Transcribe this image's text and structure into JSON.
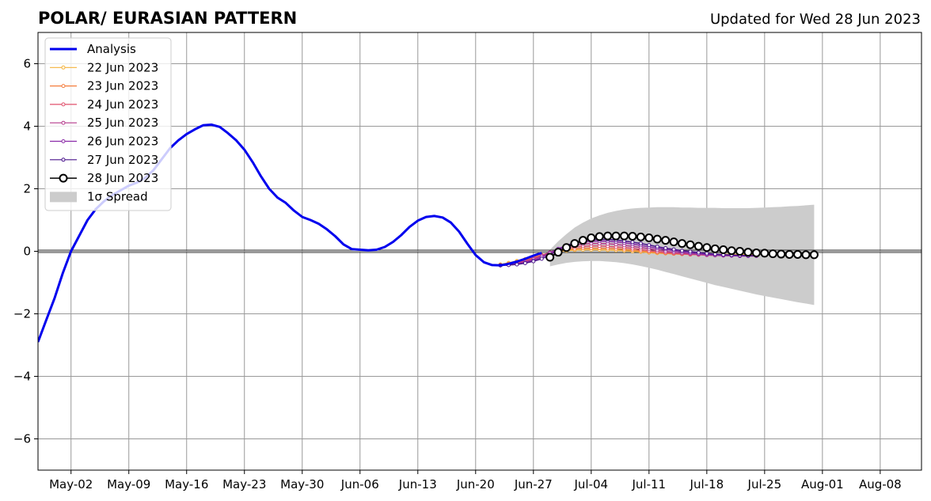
{
  "chart_data": {
    "type": "line",
    "title": "POLAR/ EURASIAN  PATTERN",
    "subtitle": "Updated for Wed 28 Jun 2023",
    "xlabel": "",
    "ylabel": "",
    "x_axis": "date",
    "xlim": [
      "2023-04-28",
      "2023-08-13"
    ],
    "ylim": [
      -7,
      7
    ],
    "x_ticks": [
      {
        "date": "2023-05-02",
        "label": "May-02"
      },
      {
        "date": "2023-05-09",
        "label": "May-09"
      },
      {
        "date": "2023-05-16",
        "label": "May-16"
      },
      {
        "date": "2023-05-23",
        "label": "May-23"
      },
      {
        "date": "2023-05-30",
        "label": "May-30"
      },
      {
        "date": "2023-06-06",
        "label": "Jun-06"
      },
      {
        "date": "2023-06-13",
        "label": "Jun-13"
      },
      {
        "date": "2023-06-20",
        "label": "Jun-20"
      },
      {
        "date": "2023-06-27",
        "label": "Jun-27"
      },
      {
        "date": "2023-07-04",
        "label": "Jul-04"
      },
      {
        "date": "2023-07-11",
        "label": "Jul-11"
      },
      {
        "date": "2023-07-18",
        "label": "Jul-18"
      },
      {
        "date": "2023-07-25",
        "label": "Jul-25"
      },
      {
        "date": "2023-08-01",
        "label": "Aug-01"
      },
      {
        "date": "2023-08-08",
        "label": "Aug-08"
      }
    ],
    "y_ticks": [
      {
        "value": -6,
        "label": "−6"
      },
      {
        "value": -4,
        "label": "−4"
      },
      {
        "value": -2,
        "label": "−2"
      },
      {
        "value": 0,
        "label": "0"
      },
      {
        "value": 2,
        "label": "2"
      },
      {
        "value": 4,
        "label": "4"
      },
      {
        "value": 6,
        "label": "6"
      }
    ],
    "grid": true,
    "legend_position": "top-left",
    "analysis": {
      "name": "Analysis",
      "color": "#0000ee",
      "points": [
        [
          "2023-04-28",
          -2.9
        ],
        [
          "2023-04-29",
          -2.2
        ],
        [
          "2023-04-30",
          -1.5
        ],
        [
          "2023-05-01",
          -0.7
        ],
        [
          "2023-05-02",
          0.0
        ],
        [
          "2023-05-03",
          0.5
        ],
        [
          "2023-05-04",
          1.0
        ],
        [
          "2023-05-05",
          1.35
        ],
        [
          "2023-05-06",
          1.6
        ],
        [
          "2023-05-07",
          1.8
        ],
        [
          "2023-05-08",
          1.95
        ],
        [
          "2023-05-09",
          2.1
        ],
        [
          "2023-05-10",
          2.2
        ],
        [
          "2023-05-11",
          2.35
        ],
        [
          "2023-05-12",
          2.6
        ],
        [
          "2023-05-13",
          2.95
        ],
        [
          "2023-05-14",
          3.3
        ],
        [
          "2023-05-15",
          3.55
        ],
        [
          "2023-05-16",
          3.75
        ],
        [
          "2023-05-17",
          3.9
        ],
        [
          "2023-05-18",
          4.03
        ],
        [
          "2023-05-19",
          4.05
        ],
        [
          "2023-05-20",
          3.98
        ],
        [
          "2023-05-21",
          3.78
        ],
        [
          "2023-05-22",
          3.55
        ],
        [
          "2023-05-23",
          3.25
        ],
        [
          "2023-05-24",
          2.85
        ],
        [
          "2023-05-25",
          2.4
        ],
        [
          "2023-05-26",
          2.0
        ],
        [
          "2023-05-27",
          1.72
        ],
        [
          "2023-05-28",
          1.55
        ],
        [
          "2023-05-29",
          1.3
        ],
        [
          "2023-05-30",
          1.1
        ],
        [
          "2023-05-31",
          1.0
        ],
        [
          "2023-06-01",
          0.88
        ],
        [
          "2023-06-02",
          0.7
        ],
        [
          "2023-06-03",
          0.48
        ],
        [
          "2023-06-04",
          0.22
        ],
        [
          "2023-06-05",
          0.07
        ],
        [
          "2023-06-06",
          0.05
        ],
        [
          "2023-06-07",
          0.03
        ],
        [
          "2023-06-08",
          0.05
        ],
        [
          "2023-06-09",
          0.14
        ],
        [
          "2023-06-10",
          0.3
        ],
        [
          "2023-06-11",
          0.52
        ],
        [
          "2023-06-12",
          0.78
        ],
        [
          "2023-06-13",
          0.98
        ],
        [
          "2023-06-14",
          1.1
        ],
        [
          "2023-06-15",
          1.13
        ],
        [
          "2023-06-16",
          1.08
        ],
        [
          "2023-06-17",
          0.92
        ],
        [
          "2023-06-18",
          0.63
        ],
        [
          "2023-06-19",
          0.24
        ],
        [
          "2023-06-20",
          -0.12
        ],
        [
          "2023-06-21",
          -0.35
        ],
        [
          "2023-06-22",
          -0.44
        ],
        [
          "2023-06-23",
          -0.45
        ],
        [
          "2023-06-24",
          -0.4
        ],
        [
          "2023-06-25",
          -0.33
        ],
        [
          "2023-06-26",
          -0.24
        ],
        [
          "2023-06-27",
          -0.14
        ],
        [
          "2023-06-28",
          -0.05
        ]
      ]
    },
    "forecast_start": "2023-06-23",
    "series": [
      {
        "name": "22 Jun 2023",
        "color": "#f4b33c",
        "values": [
          -0.42,
          -0.37,
          -0.31,
          -0.25,
          -0.18,
          -0.12,
          -0.06,
          -0.01,
          0.02,
          0.04,
          0.05,
          0.05,
          0.05,
          0.04,
          0.03,
          0.02,
          0.0,
          -0.02,
          -0.04,
          -0.06,
          -0.07,
          -0.08,
          -0.09,
          -0.1,
          -0.1,
          -0.1,
          -0.1,
          -0.1,
          -0.1,
          -0.1,
          -0.1,
          -0.1
        ]
      },
      {
        "name": "23 Jun 2023",
        "color": "#f47c3c",
        "values": [
          -0.44,
          -0.4,
          -0.34,
          -0.27,
          -0.2,
          -0.12,
          -0.05,
          0.01,
          0.05,
          0.08,
          0.1,
          0.1,
          0.1,
          0.09,
          0.08,
          0.06,
          0.04,
          0.01,
          -0.02,
          -0.04,
          -0.06,
          -0.08,
          -0.09,
          -0.1,
          -0.11,
          -0.12,
          -0.12,
          -0.13,
          -0.13,
          -0.13,
          -0.13,
          -0.13
        ]
      },
      {
        "name": "24 Jun 2023",
        "color": "#e0506c",
        "values": [
          -0.45,
          -0.42,
          -0.37,
          -0.3,
          -0.22,
          -0.13,
          -0.04,
          0.04,
          0.1,
          0.14,
          0.16,
          0.17,
          0.17,
          0.16,
          0.14,
          0.12,
          0.09,
          0.06,
          0.02,
          -0.01,
          -0.04,
          -0.06,
          -0.08,
          -0.1,
          -0.11,
          -0.12,
          -0.13,
          -0.13,
          -0.14,
          -0.14,
          -0.14,
          -0.14
        ]
      },
      {
        "name": "25 Jun 2023",
        "color": "#b53a8c",
        "values": [
          -0.45,
          -0.43,
          -0.39,
          -0.33,
          -0.25,
          -0.15,
          -0.04,
          0.07,
          0.15,
          0.2,
          0.23,
          0.25,
          0.25,
          0.24,
          0.22,
          0.19,
          0.16,
          0.12,
          0.08,
          0.04,
          0.0,
          -0.03,
          -0.06,
          -0.08,
          -0.1,
          -0.12,
          -0.13,
          -0.14,
          -0.14,
          -0.15,
          -0.15,
          -0.15
        ]
      },
      {
        "name": "26 Jun 2023",
        "color": "#8a2aa8",
        "values": [
          -0.45,
          -0.44,
          -0.41,
          -0.36,
          -0.29,
          -0.19,
          -0.06,
          0.08,
          0.19,
          0.26,
          0.3,
          0.32,
          0.33,
          0.32,
          0.3,
          0.27,
          0.23,
          0.19,
          0.14,
          0.1,
          0.06,
          0.02,
          -0.02,
          -0.05,
          -0.08,
          -0.1,
          -0.12,
          -0.13,
          -0.14,
          -0.15,
          -0.15,
          -0.15
        ]
      },
      {
        "name": "27 Jun 2023",
        "color": "#4a148c",
        "values": [
          -0.45,
          -0.44,
          -0.42,
          -0.38,
          -0.32,
          -0.24,
          -0.12,
          0.04,
          0.18,
          0.28,
          0.34,
          0.37,
          0.38,
          0.38,
          0.36,
          0.33,
          0.29,
          0.25,
          0.2,
          0.15,
          0.1,
          0.06,
          0.02,
          -0.01,
          -0.04,
          -0.07,
          -0.09,
          -0.11,
          -0.12,
          -0.13,
          -0.14,
          -0.14
        ]
      }
    ],
    "main_forecast": {
      "name": "28 Jun 2023",
      "color": "#000000",
      "start": "2023-06-29",
      "values": [
        -0.19,
        -0.03,
        0.12,
        0.25,
        0.35,
        0.43,
        0.47,
        0.49,
        0.49,
        0.49,
        0.48,
        0.46,
        0.43,
        0.39,
        0.35,
        0.3,
        0.25,
        0.21,
        0.16,
        0.12,
        0.08,
        0.05,
        0.02,
        0.0,
        -0.03,
        -0.05,
        -0.06,
        -0.08,
        -0.09,
        -0.1,
        -0.1,
        -0.11,
        -0.11
      ]
    },
    "spread": {
      "name": "1σ Spread",
      "color": "#cccccc",
      "start": "2023-06-29",
      "upper": [
        0.05,
        0.32,
        0.55,
        0.76,
        0.92,
        1.05,
        1.15,
        1.23,
        1.29,
        1.34,
        1.37,
        1.39,
        1.4,
        1.41,
        1.41,
        1.41,
        1.4,
        1.4,
        1.39,
        1.39,
        1.39,
        1.38,
        1.38,
        1.38,
        1.38,
        1.39,
        1.4,
        1.41,
        1.42,
        1.44,
        1.45,
        1.47,
        1.49
      ],
      "lower": [
        -0.48,
        -0.42,
        -0.37,
        -0.34,
        -0.32,
        -0.31,
        -0.31,
        -0.33,
        -0.35,
        -0.38,
        -0.42,
        -0.47,
        -0.53,
        -0.59,
        -0.66,
        -0.73,
        -0.8,
        -0.87,
        -0.94,
        -1.01,
        -1.08,
        -1.14,
        -1.2,
        -1.26,
        -1.32,
        -1.38,
        -1.43,
        -1.48,
        -1.53,
        -1.58,
        -1.63,
        -1.67,
        -1.72
      ]
    }
  }
}
